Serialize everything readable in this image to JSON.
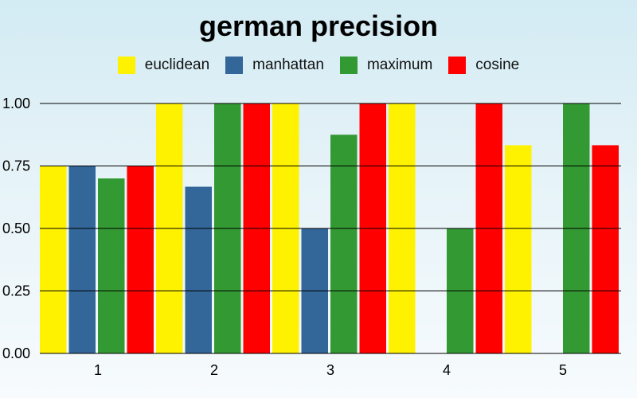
{
  "chart_data": {
    "type": "bar",
    "title": "german precision",
    "xlabel": "",
    "ylabel": "",
    "categories": [
      "1",
      "2",
      "3",
      "4",
      "5"
    ],
    "ylim": [
      0,
      1
    ],
    "yticks": [
      "0.00",
      "0.25",
      "0.50",
      "0.75",
      "1.00"
    ],
    "grid": true,
    "legend_position": "top-center",
    "series": [
      {
        "name": "euclidean",
        "color": "#fff200",
        "values": [
          0.75,
          1.0,
          1.0,
          1.0,
          0.833
        ]
      },
      {
        "name": "manhattan",
        "color": "#336699",
        "values": [
          0.75,
          0.667,
          0.5,
          0.0,
          0.0
        ]
      },
      {
        "name": "maximum",
        "color": "#339933",
        "values": [
          0.7,
          1.0,
          0.875,
          0.5,
          1.0
        ]
      },
      {
        "name": "cosine",
        "color": "#ff0000",
        "values": [
          0.75,
          1.0,
          1.0,
          1.0,
          0.833
        ]
      }
    ]
  }
}
